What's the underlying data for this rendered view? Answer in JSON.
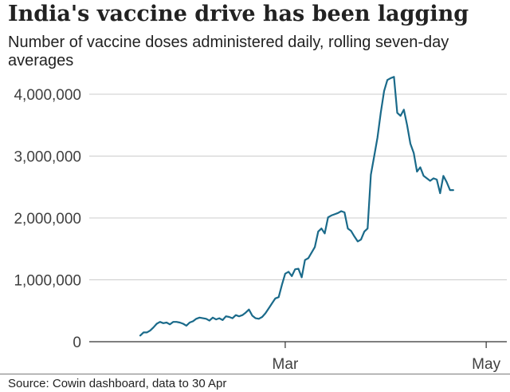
{
  "title": "India's vaccine drive has been lagging",
  "subtitle": "Number of vaccine doses administered daily, rolling seven-day averages",
  "source": "Source: Cowin dashboard, data to 30 Apr",
  "colors": {
    "line": "#1a6a8a",
    "grid": "#cccccc",
    "axis": "#333333",
    "text": "#404040"
  },
  "chart_data": {
    "type": "line",
    "title": "India's vaccine drive has been lagging",
    "subtitle": "Number of vaccine doses administered daily, rolling seven-day averages",
    "ylim": [
      0,
      4400000
    ],
    "y_ticks": [
      0,
      1000000,
      2000000,
      3000000,
      4000000
    ],
    "y_tick_labels": [
      "0",
      "1,000,000",
      "2,000,000",
      "3,000,000",
      "4,000,000"
    ],
    "x_tick_labels": [
      "Mar",
      "May"
    ],
    "x_range": [
      "2021-01-16",
      "2021-04-30"
    ],
    "grid": true,
    "series": [
      {
        "values": [
          [
            "2021-01-16",
            100000
          ],
          [
            "2021-01-17",
            150000
          ],
          [
            "2021-01-18",
            150000
          ],
          [
            "2021-01-19",
            180000
          ],
          [
            "2021-01-20",
            230000
          ],
          [
            "2021-01-21",
            290000
          ],
          [
            "2021-01-22",
            320000
          ],
          [
            "2021-01-23",
            300000
          ],
          [
            "2021-01-24",
            310000
          ],
          [
            "2021-01-25",
            280000
          ],
          [
            "2021-01-26",
            320000
          ],
          [
            "2021-01-27",
            320000
          ],
          [
            "2021-01-28",
            310000
          ],
          [
            "2021-01-29",
            290000
          ],
          [
            "2021-01-30",
            260000
          ],
          [
            "2021-01-31",
            310000
          ],
          [
            "2021-02-01",
            330000
          ],
          [
            "2021-02-02",
            370000
          ],
          [
            "2021-02-03",
            390000
          ],
          [
            "2021-02-04",
            380000
          ],
          [
            "2021-02-05",
            370000
          ],
          [
            "2021-02-06",
            340000
          ],
          [
            "2021-02-07",
            390000
          ],
          [
            "2021-02-08",
            360000
          ],
          [
            "2021-02-09",
            380000
          ],
          [
            "2021-02-10",
            350000
          ],
          [
            "2021-02-11",
            410000
          ],
          [
            "2021-02-12",
            400000
          ],
          [
            "2021-02-13",
            380000
          ],
          [
            "2021-02-14",
            430000
          ],
          [
            "2021-02-15",
            410000
          ],
          [
            "2021-02-16",
            430000
          ],
          [
            "2021-02-17",
            470000
          ],
          [
            "2021-02-18",
            520000
          ],
          [
            "2021-02-19",
            420000
          ],
          [
            "2021-02-20",
            380000
          ],
          [
            "2021-02-21",
            370000
          ],
          [
            "2021-02-22",
            400000
          ],
          [
            "2021-02-23",
            460000
          ],
          [
            "2021-02-24",
            540000
          ],
          [
            "2021-02-25",
            620000
          ],
          [
            "2021-02-26",
            700000
          ],
          [
            "2021-02-27",
            720000
          ],
          [
            "2021-02-28",
            920000
          ],
          [
            "2021-03-01",
            1100000
          ],
          [
            "2021-03-02",
            1130000
          ],
          [
            "2021-03-03",
            1060000
          ],
          [
            "2021-03-04",
            1170000
          ],
          [
            "2021-03-05",
            1180000
          ],
          [
            "2021-03-06",
            1040000
          ],
          [
            "2021-03-07",
            1320000
          ],
          [
            "2021-03-08",
            1350000
          ],
          [
            "2021-03-09",
            1440000
          ],
          [
            "2021-03-10",
            1530000
          ],
          [
            "2021-03-11",
            1780000
          ],
          [
            "2021-03-12",
            1830000
          ],
          [
            "2021-03-13",
            1750000
          ],
          [
            "2021-03-14",
            2010000
          ],
          [
            "2021-03-15",
            2040000
          ],
          [
            "2021-03-16",
            2060000
          ],
          [
            "2021-03-17",
            2080000
          ],
          [
            "2021-03-18",
            2110000
          ],
          [
            "2021-03-19",
            2090000
          ],
          [
            "2021-03-20",
            1830000
          ],
          [
            "2021-03-21",
            1790000
          ],
          [
            "2021-03-22",
            1700000
          ],
          [
            "2021-03-23",
            1620000
          ],
          [
            "2021-03-24",
            1650000
          ],
          [
            "2021-03-25",
            1780000
          ],
          [
            "2021-03-26",
            1830000
          ],
          [
            "2021-03-27",
            2700000
          ],
          [
            "2021-03-28",
            3000000
          ],
          [
            "2021-03-29",
            3300000
          ],
          [
            "2021-03-30",
            3700000
          ],
          [
            "2021-03-31",
            4050000
          ],
          [
            "2021-04-01",
            4230000
          ],
          [
            "2021-04-02",
            4260000
          ],
          [
            "2021-04-03",
            4280000
          ],
          [
            "2021-04-04",
            3700000
          ],
          [
            "2021-04-05",
            3650000
          ],
          [
            "2021-04-06",
            3750000
          ],
          [
            "2021-04-07",
            3500000
          ],
          [
            "2021-04-08",
            3200000
          ],
          [
            "2021-04-09",
            3050000
          ],
          [
            "2021-04-10",
            2750000
          ],
          [
            "2021-04-11",
            2820000
          ],
          [
            "2021-04-12",
            2680000
          ],
          [
            "2021-04-13",
            2640000
          ],
          [
            "2021-04-14",
            2600000
          ],
          [
            "2021-04-15",
            2640000
          ],
          [
            "2021-04-16",
            2620000
          ],
          [
            "2021-04-17",
            2400000
          ],
          [
            "2021-04-18",
            2680000
          ],
          [
            "2021-04-19",
            2580000
          ],
          [
            "2021-04-20",
            2450000
          ],
          [
            "2021-04-21",
            2450000
          ]
        ]
      }
    ]
  }
}
